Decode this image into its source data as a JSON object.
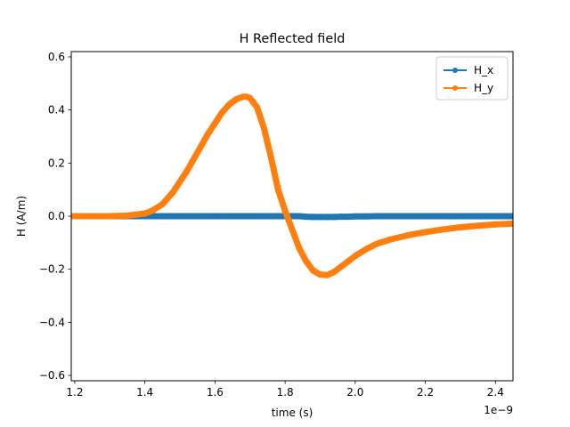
{
  "chart_data": {
    "type": "line",
    "title": "H Reflected field",
    "xlabel": "time (s)",
    "ylabel": "H (A/m)",
    "x_offset_label": "1e−9",
    "xlim": [
      1.19,
      2.45
    ],
    "ylim": [
      -0.62,
      0.62
    ],
    "x_unit_scale": 1e-09,
    "xticks": [
      1.2,
      1.4,
      1.6,
      1.8,
      2.0,
      2.2,
      2.4
    ],
    "xtick_labels": [
      "1.2",
      "1.4",
      "1.6",
      "1.8",
      "2.0",
      "2.2",
      "2.4"
    ],
    "yticks": [
      -0.6,
      -0.4,
      -0.2,
      0.0,
      0.2,
      0.4,
      0.6
    ],
    "ytick_labels": [
      "−0.6",
      "−0.4",
      "−0.2",
      "0.0",
      "0.2",
      "0.4",
      "0.6"
    ],
    "grid": false,
    "legend_position": "top-right",
    "x": [
      1.19,
      1.25,
      1.3,
      1.35,
      1.4,
      1.42,
      1.45,
      1.48,
      1.5,
      1.52,
      1.55,
      1.58,
      1.6,
      1.62,
      1.64,
      1.66,
      1.68,
      1.69,
      1.7,
      1.72,
      1.74,
      1.76,
      1.78,
      1.8,
      1.82,
      1.84,
      1.86,
      1.88,
      1.9,
      1.92,
      1.94,
      1.96,
      1.98,
      2.0,
      2.03,
      2.06,
      2.1,
      2.15,
      2.2,
      2.25,
      2.3,
      2.35,
      2.4,
      2.45
    ],
    "series": [
      {
        "name": "H_x",
        "color": "#1f77b4",
        "values": [
          0.0,
          0.0,
          0.0,
          0.0,
          0.0,
          0.0,
          0.0,
          0.0,
          0.0,
          0.0,
          0.0,
          0.0,
          0.0,
          0.0,
          0.0,
          0.0,
          0.0,
          0.0,
          0.0,
          0.0,
          0.0,
          0.0,
          0.0,
          0.0,
          0.0,
          0.0,
          -0.002,
          -0.003,
          -0.003,
          -0.003,
          -0.003,
          -0.002,
          -0.002,
          -0.001,
          -0.001,
          0.0,
          0.0,
          0.0,
          0.0,
          0.0,
          0.0,
          0.0,
          0.0,
          0.0
        ]
      },
      {
        "name": "H_y",
        "color": "#ff7f0e",
        "values": [
          0.0,
          0.0,
          0.0,
          0.002,
          0.01,
          0.02,
          0.045,
          0.09,
          0.13,
          0.17,
          0.24,
          0.31,
          0.35,
          0.39,
          0.42,
          0.44,
          0.45,
          0.45,
          0.445,
          0.41,
          0.33,
          0.22,
          0.1,
          0.02,
          -0.05,
          -0.12,
          -0.17,
          -0.205,
          -0.22,
          -0.222,
          -0.21,
          -0.19,
          -0.17,
          -0.15,
          -0.125,
          -0.105,
          -0.088,
          -0.072,
          -0.06,
          -0.05,
          -0.042,
          -0.036,
          -0.031,
          -0.028
        ]
      }
    ]
  }
}
